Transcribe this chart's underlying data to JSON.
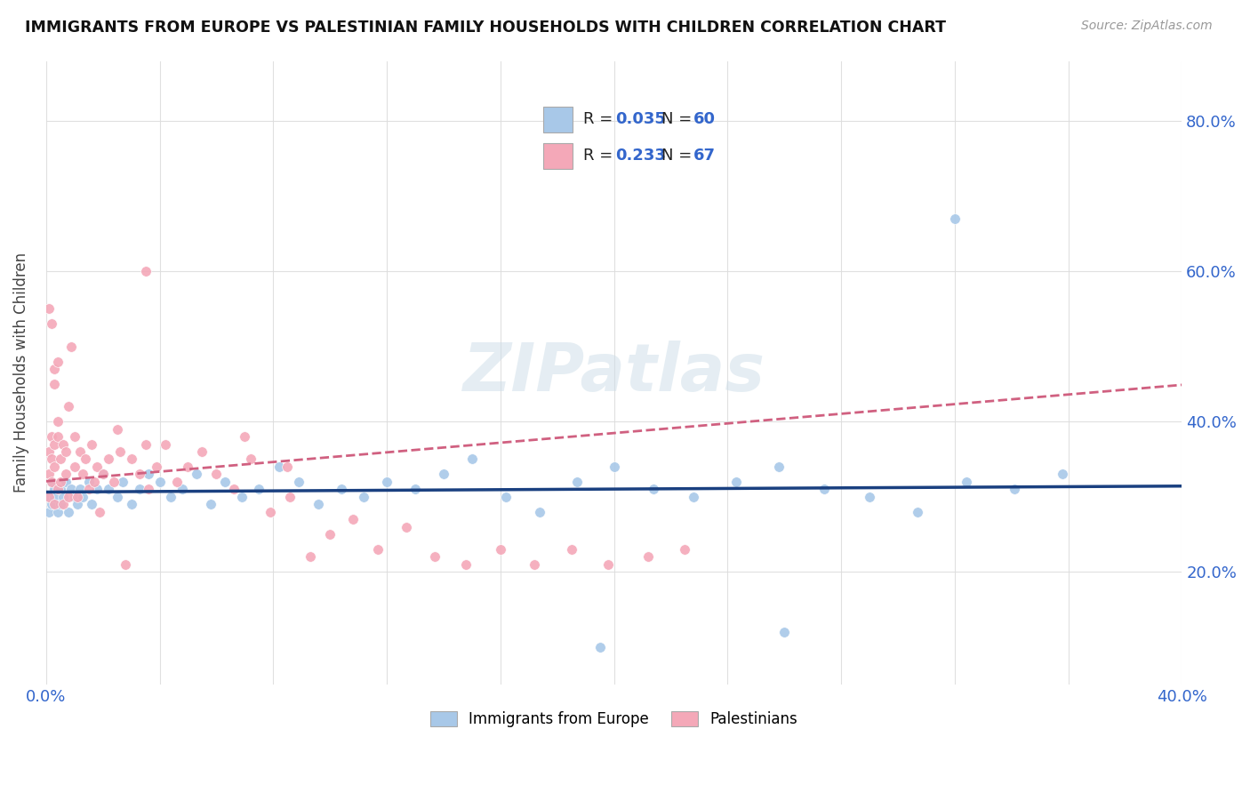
{
  "title": "IMMIGRANTS FROM EUROPE VS PALESTINIAN FAMILY HOUSEHOLDS WITH CHILDREN CORRELATION CHART",
  "source": "Source: ZipAtlas.com",
  "ylabel": "Family Households with Children",
  "xlim": [
    0.0,
    0.4
  ],
  "ylim": [
    0.05,
    0.88
  ],
  "yticks_right": [
    0.2,
    0.4,
    0.6,
    0.8
  ],
  "ytick_labels_right": [
    "20.0%",
    "40.0%",
    "60.0%",
    "80.0%"
  ],
  "blue_R": 0.035,
  "blue_N": 60,
  "pink_R": 0.233,
  "pink_N": 67,
  "blue_color": "#a8c8e8",
  "pink_color": "#f4a8b8",
  "blue_line_color": "#1a4080",
  "pink_line_color": "#d06080",
  "watermark": "ZIPatlas",
  "blue_scatter_x": [
    0.001,
    0.001,
    0.002,
    0.002,
    0.003,
    0.003,
    0.004,
    0.005,
    0.005,
    0.006,
    0.007,
    0.008,
    0.009,
    0.01,
    0.011,
    0.012,
    0.013,
    0.015,
    0.016,
    0.018,
    0.02,
    0.022,
    0.025,
    0.027,
    0.03,
    0.033,
    0.036,
    0.04,
    0.044,
    0.048,
    0.053,
    0.058,
    0.063,
    0.069,
    0.075,
    0.082,
    0.089,
    0.096,
    0.104,
    0.112,
    0.12,
    0.13,
    0.14,
    0.15,
    0.162,
    0.174,
    0.187,
    0.2,
    0.214,
    0.228,
    0.243,
    0.258,
    0.274,
    0.29,
    0.307,
    0.324,
    0.341,
    0.358,
    0.26,
    0.195
  ],
  "blue_scatter_y": [
    0.3,
    0.28,
    0.32,
    0.29,
    0.31,
    0.3,
    0.28,
    0.31,
    0.29,
    0.3,
    0.32,
    0.28,
    0.31,
    0.3,
    0.29,
    0.31,
    0.3,
    0.32,
    0.29,
    0.31,
    0.33,
    0.31,
    0.3,
    0.32,
    0.29,
    0.31,
    0.33,
    0.32,
    0.3,
    0.31,
    0.33,
    0.29,
    0.32,
    0.3,
    0.31,
    0.34,
    0.32,
    0.29,
    0.31,
    0.3,
    0.32,
    0.31,
    0.33,
    0.35,
    0.3,
    0.28,
    0.32,
    0.34,
    0.31,
    0.3,
    0.32,
    0.34,
    0.31,
    0.3,
    0.28,
    0.32,
    0.31,
    0.33,
    0.12,
    0.1
  ],
  "blue_scatter_y_outliers": [
    0.67
  ],
  "blue_scatter_x_outliers": [
    0.32
  ],
  "pink_scatter_x": [
    0.001,
    0.001,
    0.001,
    0.002,
    0.002,
    0.002,
    0.003,
    0.003,
    0.003,
    0.004,
    0.004,
    0.004,
    0.005,
    0.005,
    0.006,
    0.006,
    0.007,
    0.007,
    0.008,
    0.008,
    0.009,
    0.01,
    0.01,
    0.011,
    0.012,
    0.013,
    0.014,
    0.015,
    0.016,
    0.017,
    0.018,
    0.019,
    0.02,
    0.022,
    0.024,
    0.026,
    0.028,
    0.03,
    0.033,
    0.036,
    0.039,
    0.042,
    0.046,
    0.05,
    0.055,
    0.06,
    0.066,
    0.072,
    0.079,
    0.086,
    0.093,
    0.1,
    0.108,
    0.117,
    0.127,
    0.137,
    0.148,
    0.16,
    0.172,
    0.185,
    0.198,
    0.212,
    0.225,
    0.035,
    0.025,
    0.07,
    0.085
  ],
  "pink_scatter_y": [
    0.33,
    0.36,
    0.3,
    0.35,
    0.32,
    0.38,
    0.29,
    0.37,
    0.34,
    0.31,
    0.38,
    0.4,
    0.32,
    0.35,
    0.29,
    0.37,
    0.33,
    0.36,
    0.3,
    0.42,
    0.5,
    0.34,
    0.38,
    0.3,
    0.36,
    0.33,
    0.35,
    0.31,
    0.37,
    0.32,
    0.34,
    0.28,
    0.33,
    0.35,
    0.32,
    0.36,
    0.21,
    0.35,
    0.33,
    0.31,
    0.34,
    0.37,
    0.32,
    0.34,
    0.36,
    0.33,
    0.31,
    0.35,
    0.28,
    0.3,
    0.22,
    0.25,
    0.27,
    0.23,
    0.26,
    0.22,
    0.21,
    0.23,
    0.21,
    0.23,
    0.21,
    0.22,
    0.23,
    0.37,
    0.39,
    0.38,
    0.34
  ],
  "pink_scatter_y_special": [
    0.55,
    0.53,
    0.47,
    0.45,
    0.48,
    0.6
  ],
  "pink_scatter_x_special": [
    0.001,
    0.002,
    0.003,
    0.003,
    0.004,
    0.035
  ]
}
